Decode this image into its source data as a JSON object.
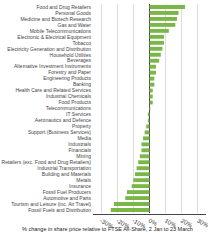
{
  "chart_data": {
    "type": "bar",
    "orientation": "horizontal",
    "categories": [
      "Food and Drug Retailers",
      "Personal Goods",
      "Medicine and Biotech Research",
      "Gas and Water",
      "Mobile Telecommunications",
      "Electronic & Electrical Equipment",
      "Tobacco",
      "Electricity Generation and Distribution",
      "Household Utilities",
      "Beverages",
      "Alternative Investment Instruments",
      "Forestry and Paper",
      "Engineering Products",
      "Banking",
      "Health Care and Related Services",
      "Industrial Chemicals",
      "Food Products",
      "Telecommunications",
      "IT Services",
      "Aeronautics and Defence",
      "Property",
      "Support (Business Services)",
      "Media",
      "Industrials",
      "Financials",
      "Mining",
      "Retailers (exc. Food and Drug Retailers)",
      "Industrial Transportation",
      "Building and Materials",
      "Metals",
      "Insurance",
      "Fossil Fuel Producers",
      "Automotive and Parts",
      "Tourism and Leisure (inc. Air Travel)",
      "Fossil Fuels and Distribution"
    ],
    "values": [
      22,
      18,
      17,
      16,
      12,
      9,
      9,
      8,
      7,
      6,
      4,
      4,
      3,
      3,
      2,
      2,
      2,
      0.5,
      -1,
      -1,
      -2,
      -3,
      -4,
      -5,
      -5,
      -6,
      -7,
      -8,
      -9,
      -10,
      -11,
      -14,
      -15,
      -22,
      -24
    ],
    "color": "#7ab648",
    "xlabel": "% change in share price relative to FTSE All-Share, 2 Jan to 23 March",
    "xlim": [
      -35,
      35
    ],
    "xticks": [
      {
        "value": -30,
        "label": "-30%"
      },
      {
        "value": -20,
        "label": "-20%"
      },
      {
        "value": -10,
        "label": "-10%"
      },
      {
        "value": 0,
        "label": "0%"
      },
      {
        "value": 10,
        "label": "10%"
      },
      {
        "value": 20,
        "label": "20%"
      },
      {
        "value": 30,
        "label": "30%"
      }
    ],
    "grid": true
  }
}
